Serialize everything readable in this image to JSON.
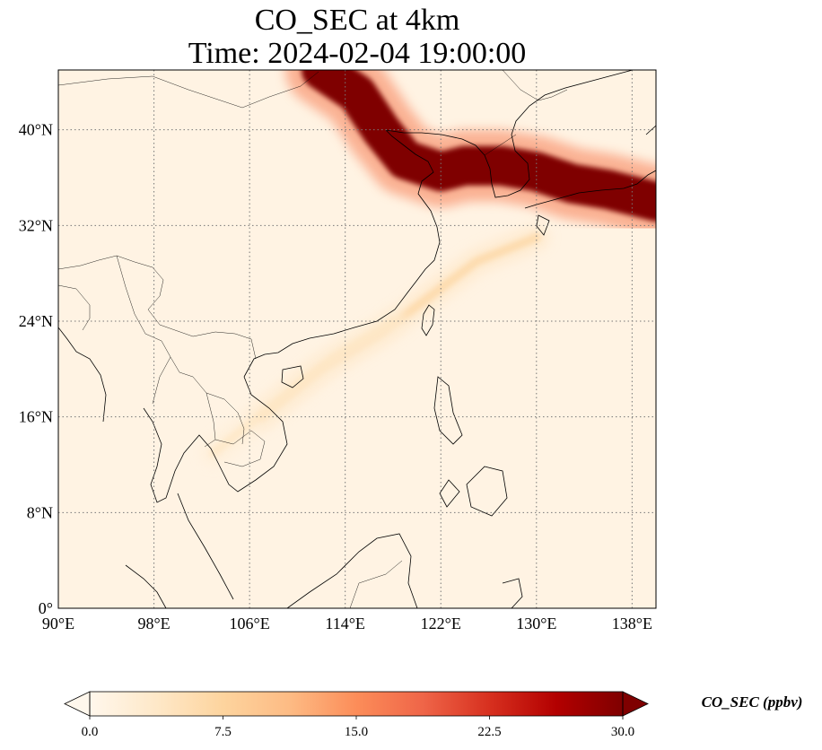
{
  "title": {
    "line1": "CO_SEC at 4km",
    "line2": "Time: 2024-02-04 19:00:00"
  },
  "map": {
    "lon_range": [
      90,
      140
    ],
    "lat_range": [
      0,
      45
    ],
    "lon_ticks": [
      {
        "value": 90,
        "label": "90°E"
      },
      {
        "value": 98,
        "label": "98°E"
      },
      {
        "value": 106,
        "label": "106°E"
      },
      {
        "value": 114,
        "label": "114°E"
      },
      {
        "value": 122,
        "label": "122°E"
      },
      {
        "value": 130,
        "label": "130°E"
      },
      {
        "value": 138,
        "label": "138°E"
      }
    ],
    "lat_ticks": [
      {
        "value": 0,
        "label": "0°"
      },
      {
        "value": 8,
        "label": "8°N"
      },
      {
        "value": 16,
        "label": "16°N"
      },
      {
        "value": 24,
        "label": "24°N"
      },
      {
        "value": 32,
        "label": "32°N"
      },
      {
        "value": 40,
        "label": "40°N"
      }
    ],
    "gridlines": "dotted"
  },
  "colorbar": {
    "label": "CO_SEC (ppbv)",
    "min": 0,
    "max": 30,
    "extend": "both",
    "colormap": "OrRd",
    "colors": [
      "#fff7ec",
      "#fee8c8",
      "#fdd49e",
      "#fdbb84",
      "#fc8d59",
      "#ef6548",
      "#d7301f",
      "#b30000",
      "#7f0000"
    ],
    "ticks": [
      {
        "value": 0,
        "label": "0.0"
      },
      {
        "value": 7.5,
        "label": "7.5"
      },
      {
        "value": 15,
        "label": "15.0"
      },
      {
        "value": 22.5,
        "label": "22.5"
      },
      {
        "value": 30,
        "label": "30.0"
      }
    ]
  },
  "plumes": [
    {
      "name": "north-china-korea-japan-band",
      "value_ppbv": 30,
      "path": [
        [
          112,
          45
        ],
        [
          115,
          43
        ],
        [
          117,
          40
        ],
        [
          119,
          37.5
        ],
        [
          122,
          36.5
        ],
        [
          124,
          37
        ],
        [
          127,
          37
        ],
        [
          130,
          36.5
        ],
        [
          133,
          35.5
        ],
        [
          136,
          35
        ],
        [
          140,
          34
        ]
      ]
    },
    {
      "name": "east-china-sea-band",
      "value_ppbv": 7,
      "path": [
        [
          107,
          16
        ],
        [
          112,
          20
        ],
        [
          117,
          23
        ],
        [
          121,
          26
        ],
        [
          125,
          29
        ],
        [
          130,
          31
        ]
      ]
    },
    {
      "name": "south-china-sea-faint-band",
      "value_ppbv": 4,
      "path": [
        [
          103,
          13
        ],
        [
          108,
          17
        ],
        [
          113,
          21
        ],
        [
          118,
          24
        ]
      ]
    }
  ]
}
